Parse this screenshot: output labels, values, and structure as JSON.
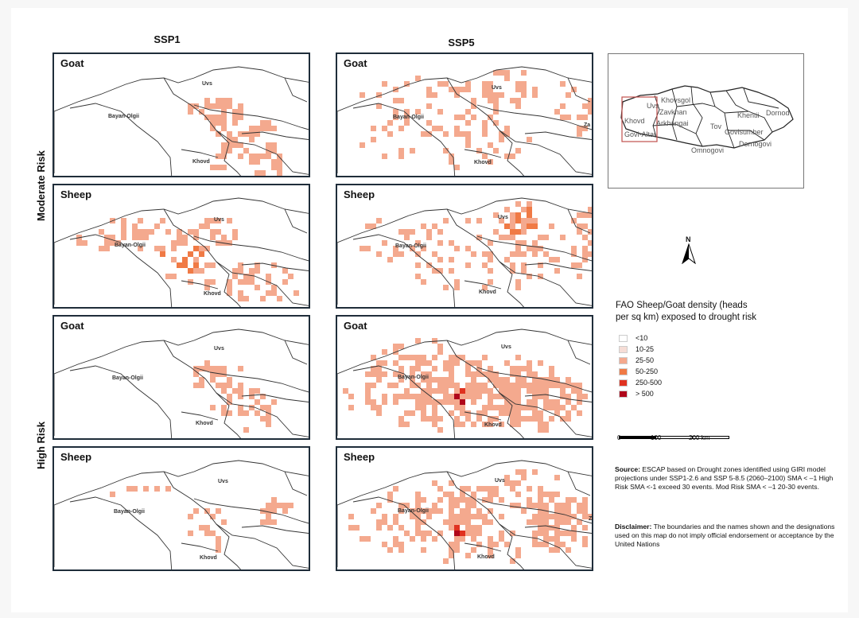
{
  "columns": {
    "ssp1": "SSP1",
    "ssp5": "SSP5"
  },
  "rows": {
    "moderate": "Moderate Risk",
    "high": "High Risk"
  },
  "panels": [
    {
      "title": "Goat",
      "scenario": "SSP1",
      "risk": "moderate",
      "labels": {
        "uvs": "Uvs",
        "bayan": "Bayan-Olgii",
        "khovd": "Khovd"
      }
    },
    {
      "title": "Goat",
      "scenario": "SSP5",
      "risk": "moderate",
      "labels": {
        "uvs": "Uvs",
        "bayan": "Bayan-Olgii",
        "khovd": "Khovd",
        "zav": "Za"
      }
    },
    {
      "title": "Sheep",
      "scenario": "SSP1",
      "risk": "moderate",
      "labels": {
        "uvs": "Uvs",
        "bayan": "Bayan-Olgii",
        "khovd": "Khovd"
      }
    },
    {
      "title": "Sheep",
      "scenario": "SSP5",
      "risk": "moderate",
      "labels": {
        "uvs": "Uvs",
        "bayan": "Bayan-Olgii",
        "khovd": "Khovd"
      }
    },
    {
      "title": "Goat",
      "scenario": "SSP1",
      "risk": "high",
      "labels": {
        "uvs": "Uvs",
        "bayan": "Bayan-Olgii",
        "khovd": "Khovd"
      }
    },
    {
      "title": "Goat",
      "scenario": "SSP5",
      "risk": "high",
      "labels": {
        "uvs": "Uvs",
        "bayan": "Bayan-Olgii",
        "khovd": "Khovd"
      }
    },
    {
      "title": "Sheep",
      "scenario": "SSP1",
      "risk": "high",
      "labels": {
        "uvs": "Uvs",
        "bayan": "Bayan-Olgii",
        "khovd": "Khovd"
      }
    },
    {
      "title": "Sheep",
      "scenario": "SSP5",
      "risk": "high",
      "labels": {
        "uvs": "Uvs",
        "bayan": "Bayan-Olgii",
        "khovd": "Khovd",
        "zav": "Za"
      }
    }
  ],
  "inset": {
    "labels": [
      "Khovsgol",
      "Uvs",
      "Zavkhan",
      "Khentii",
      "Dornod",
      "Khovd",
      "Arkhangai",
      "Tov",
      "Govi-Altai",
      "Govisumber",
      "Dornogovi",
      "Omnogovi"
    ]
  },
  "north_label": "N",
  "legend": {
    "title": "FAO Sheep/Goat density (heads per sq km) exposed to drought risk",
    "items": [
      {
        "label": "<10",
        "color": "#ffffff"
      },
      {
        "label": "10-25",
        "color": "#f6ddd6"
      },
      {
        "label": "25-50",
        "color": "#f4a98e"
      },
      {
        "label": "50-250",
        "color": "#f07a45"
      },
      {
        "label": "250-500",
        "color": "#e03220"
      },
      {
        "label": "> 500",
        "color": "#b0071b"
      }
    ]
  },
  "scale": {
    "zero": "0",
    "mid": "100",
    "end": "200 km"
  },
  "source": {
    "label": "Source:",
    "text": "ESCAP based on Drought zones identified using GIRI model projections under SSP1-2.6 and SSP 5-8.5 (2060–2100) SMA < –1 High Risk SMA <-1 exceed 30 events. Mod Risk  SMA < –1  20-30 events."
  },
  "disclaimer": {
    "label": "Disclaimer:",
    "text": "The boundaries and the names shown and the designations used on this map do not imply official endorsement or acceptance by the United Nations"
  }
}
